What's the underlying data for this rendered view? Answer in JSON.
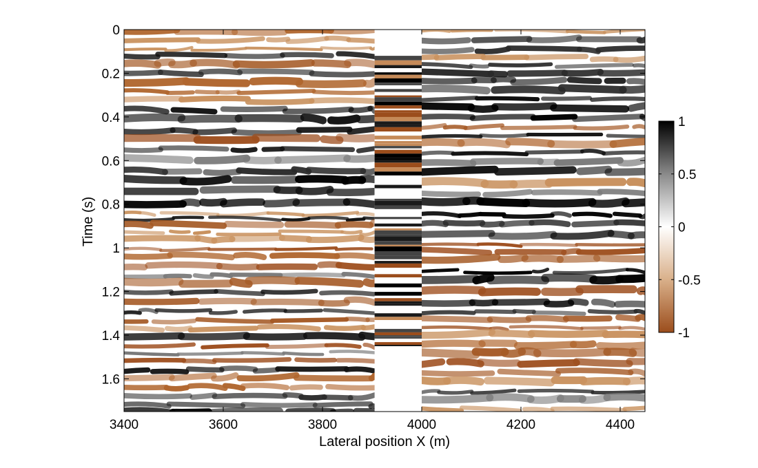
{
  "chart_data": {
    "type": "heatmap",
    "title": "",
    "xlabel": "Lateral position X (m)",
    "ylabel": "Time (s)",
    "xlim": [
      3400,
      4450
    ],
    "ylim": [
      1.75,
      0
    ],
    "x_ticks": [
      3400,
      3600,
      3800,
      4000,
      4200,
      4400
    ],
    "x_tick_labels": [
      "3400",
      "3600",
      "3800",
      "4000",
      "4200",
      "4400"
    ],
    "y_ticks": [
      0,
      0.2,
      0.4,
      0.6,
      0.8,
      1,
      1.2,
      1.4,
      1.6
    ],
    "y_tick_labels": [
      "0",
      "0.2",
      "0.4",
      "0.6",
      "0.8",
      "1",
      "1.2",
      "1.4",
      "1.6"
    ],
    "gap_x_range": [
      3905,
      4000
    ],
    "reference_trace": {
      "x_range": [
        3905,
        4000
      ],
      "t_range": [
        0.12,
        1.45
      ]
    },
    "colorbar": {
      "range": [
        -1,
        1
      ],
      "ticks": [
        1,
        0.5,
        0,
        -0.5,
        -1
      ],
      "tick_labels": [
        "1",
        "0.5",
        "0",
        "-0.5",
        "-1"
      ],
      "colormap": [
        {
          "value": -1,
          "color": "#a0522d"
        },
        {
          "value": -0.5,
          "color": "#d2a87c"
        },
        {
          "value": 0,
          "color": "#ffffff"
        },
        {
          "value": 0.5,
          "color": "#888888"
        },
        {
          "value": 1,
          "color": "#000000"
        }
      ]
    },
    "grid": false,
    "legend": "none"
  }
}
